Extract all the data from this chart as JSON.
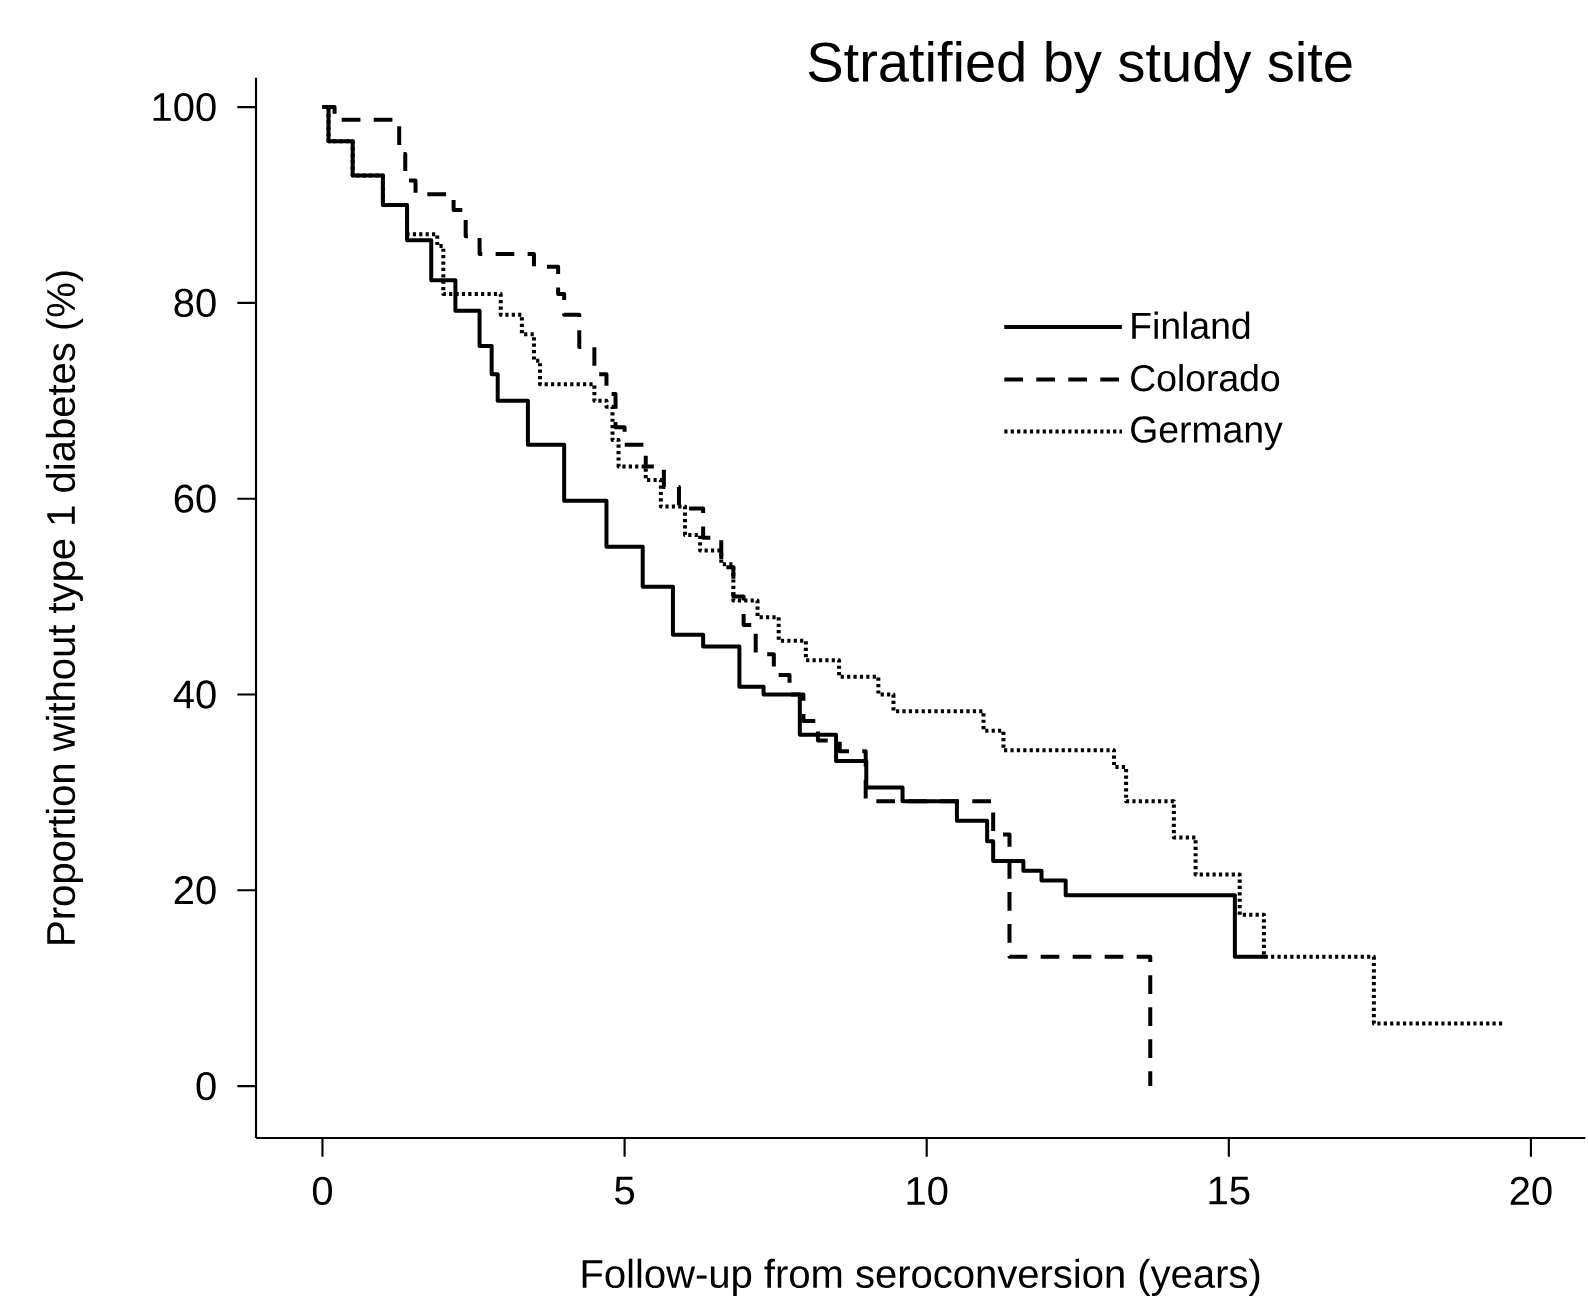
{
  "chart_data": {
    "type": "step",
    "title": "Stratified by study site",
    "xlabel": "Follow-up from seroconversion (years)",
    "ylabel": "Proportion without type 1 diabetes (%)",
    "xlim": [
      -1.1,
      20.9
    ],
    "ylim": [
      -5.3,
      103
    ],
    "xticks": [
      0,
      5,
      10,
      15,
      20
    ],
    "yticks": [
      0,
      20,
      40,
      60,
      80,
      100
    ],
    "grid": false,
    "legend": "top right",
    "marker": "none",
    "series": [
      {
        "name": "Finland",
        "color": "#000000",
        "line_style": "solid",
        "x": [
          0,
          0.1,
          0.5,
          1.0,
          1.4,
          1.8,
          2.2,
          2.6,
          2.8,
          2.9,
          3.4,
          4.0,
          4.7,
          5.3,
          5.8,
          6.3,
          6.9,
          7.3,
          7.9,
          8.5,
          9.0,
          9.6,
          10.5,
          11.0,
          11.1,
          11.6,
          11.9,
          12.3,
          15.1,
          15.6
        ],
        "values": [
          100,
          96.5,
          93,
          90,
          86.4,
          82.3,
          79.2,
          75.6,
          72.7,
          70,
          65.5,
          59.8,
          55.1,
          51,
          46.1,
          44.9,
          40.8,
          40,
          35.9,
          33.2,
          30.5,
          29.1,
          27.1,
          25,
          23,
          22,
          21,
          19.5,
          13.2,
          13.2
        ]
      },
      {
        "name": "Colorado",
        "color": "#000000",
        "line_style": "dashed",
        "x": [
          0,
          0.2,
          1.27,
          1.37,
          1.54,
          2.17,
          2.37,
          2.6,
          3.5,
          3.9,
          4.0,
          4.25,
          4.5,
          4.7,
          4.85,
          5.0,
          5.35,
          5.65,
          5.9,
          6.3,
          6.6,
          6.8,
          6.97,
          7.17,
          7.47,
          7.73,
          7.96,
          8.2,
          8.56,
          8.99,
          11.1,
          11.37,
          13.7
        ],
        "values": [
          100,
          98.7,
          95.2,
          92.5,
          91.1,
          89.5,
          86.8,
          85,
          83.7,
          80.9,
          78.8,
          75.5,
          72.7,
          70.7,
          67.3,
          65.5,
          63.3,
          61.2,
          59,
          56,
          53,
          50,
          47.1,
          44.1,
          42,
          40,
          37.3,
          35.3,
          34.2,
          29.1,
          25.7,
          13.2,
          0
        ]
      },
      {
        "name": "Germany",
        "color": "#000000",
        "line_style": "dotted",
        "x": [
          0,
          0.1,
          0.5,
          1.0,
          1.4,
          1.9,
          2.0,
          2.95,
          3.3,
          3.5,
          3.6,
          4.5,
          4.7,
          4.8,
          4.9,
          5.35,
          5.6,
          6.0,
          6.25,
          6.6,
          6.8,
          7.2,
          7.55,
          8.0,
          8.55,
          9.2,
          9.45,
          10.94,
          11.27,
          13.1,
          13.3,
          14.09,
          14.45,
          15.18,
          15.58,
          17.4,
          19.55
        ],
        "values": [
          100,
          96.5,
          93,
          90,
          87,
          85.8,
          80.9,
          78.8,
          76.8,
          74.1,
          71.7,
          70,
          69.4,
          66,
          63.3,
          61.9,
          59.2,
          56.3,
          54.7,
          53.3,
          49.6,
          47.9,
          45.5,
          43.5,
          41.8,
          40,
          38.3,
          36.3,
          34.3,
          32.6,
          29.1,
          25.4,
          21.6,
          17.5,
          13.2,
          6.4,
          6.4
        ]
      }
    ]
  }
}
